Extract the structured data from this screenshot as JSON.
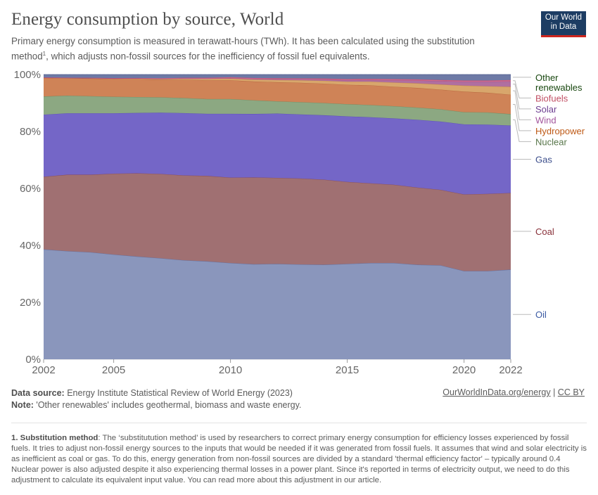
{
  "header": {
    "title": "Energy consumption by source, World",
    "subtitle_part1": "Primary energy consumption is measured in terawatt-hours (TWh). It has been calculated using the substitution method",
    "subtitle_sup": "1",
    "subtitle_part2": ", which adjusts non-fossil sources for the inefficiency of fossil fuel equivalents.",
    "logo_line1": "Our World",
    "logo_line2": "in Data"
  },
  "chart_data": {
    "type": "area",
    "stacked": true,
    "relative": true,
    "x": [
      2002,
      2003,
      2004,
      2005,
      2006,
      2007,
      2008,
      2009,
      2010,
      2011,
      2012,
      2013,
      2014,
      2015,
      2016,
      2017,
      2018,
      2019,
      2020,
      2021,
      2022
    ],
    "xticks": [
      "2002",
      "2005",
      "2010",
      "2015",
      "2020",
      "2022"
    ],
    "yticks": [
      "0%",
      "20%",
      "40%",
      "60%",
      "80%",
      "100%"
    ],
    "ylim": [
      0,
      100
    ],
    "grid": "horizontal dashed",
    "legend": "right, labels at series end",
    "series": [
      {
        "name": "Oil",
        "color": "#8a96bc",
        "line": "#5f6fa3",
        "label_color": "#3b5aa3",
        "values": [
          38.6,
          38.0,
          37.6,
          36.8,
          36.1,
          35.5,
          34.8,
          34.4,
          33.8,
          33.4,
          33.5,
          33.3,
          33.2,
          33.5,
          33.8,
          33.8,
          33.2,
          33.0,
          31.0,
          31.0,
          31.5
        ]
      },
      {
        "name": "Coal",
        "color": "#a07072",
        "line": "#8b4a4e",
        "label_color": "#883039",
        "values": [
          25.5,
          26.8,
          27.2,
          28.4,
          29.2,
          29.6,
          29.8,
          30.0,
          30.0,
          30.5,
          30.2,
          30.2,
          29.9,
          28.8,
          28.0,
          27.5,
          27.1,
          26.5,
          26.9,
          27.1,
          26.9
        ]
      },
      {
        "name": "Gas",
        "color": "#7466c7",
        "line": "#5b4cb7",
        "label_color": "#3c4e8b",
        "values": [
          21.8,
          21.6,
          21.6,
          21.2,
          21.2,
          21.5,
          21.9,
          21.8,
          22.4,
          22.3,
          22.6,
          22.5,
          22.6,
          23.0,
          23.2,
          23.3,
          23.8,
          24.0,
          24.6,
          24.3,
          23.7
        ]
      },
      {
        "name": "Nuclear",
        "color": "#8ca882",
        "line": "#6d8a62",
        "label_color": "#58764a",
        "values": [
          6.4,
          6.2,
          6.0,
          5.8,
          5.6,
          5.4,
          5.3,
          5.2,
          5.2,
          4.8,
          4.3,
          4.3,
          4.3,
          4.3,
          4.3,
          4.3,
          4.3,
          4.3,
          4.3,
          4.3,
          4.0
        ]
      },
      {
        "name": "Hydropower",
        "color": "#cf8357",
        "line": "#b5653c",
        "label_color": "#be5915",
        "values": [
          6.5,
          6.1,
          6.2,
          6.2,
          6.3,
          6.2,
          6.4,
          6.6,
          6.6,
          6.6,
          6.7,
          6.8,
          6.8,
          6.8,
          6.9,
          6.8,
          6.9,
          6.9,
          7.2,
          6.9,
          6.8
        ]
      },
      {
        "name": "Wind",
        "color": "#d8a66c",
        "line": "#c28a4a",
        "label_color": "#a2559c",
        "values": [
          0.1,
          0.1,
          0.15,
          0.2,
          0.25,
          0.3,
          0.4,
          0.5,
          0.6,
          0.7,
          0.8,
          0.9,
          1.0,
          1.1,
          1.3,
          1.5,
          1.6,
          1.8,
          2.1,
          2.3,
          2.8
        ]
      },
      {
        "name": "Solar",
        "color": "#b06fa0",
        "line": "#9a4f8a",
        "label_color": "#6d3e91",
        "values": [
          0.0,
          0.0,
          0.0,
          0.0,
          0.0,
          0.0,
          0.05,
          0.05,
          0.1,
          0.2,
          0.25,
          0.3,
          0.4,
          0.5,
          0.6,
          0.8,
          1.0,
          1.2,
          1.4,
          1.6,
          1.9
        ]
      },
      {
        "name": "Biofuels",
        "color": "#d36b8b",
        "line": "#c04a6c",
        "label_color": "#c15065",
        "values": [
          0.1,
          0.1,
          0.1,
          0.15,
          0.15,
          0.2,
          0.25,
          0.3,
          0.35,
          0.35,
          0.35,
          0.35,
          0.4,
          0.4,
          0.4,
          0.4,
          0.4,
          0.4,
          0.4,
          0.4,
          0.5
        ]
      },
      {
        "name": "Other renewables",
        "color": "#6e7aa6",
        "line": "#4c5a8d",
        "label_color": "#18470f",
        "values": [
          1.0,
          1.1,
          1.15,
          1.25,
          1.2,
          1.3,
          1.15,
          1.15,
          0.95,
          1.2,
          1.3,
          1.35,
          1.4,
          1.6,
          1.5,
          1.6,
          1.7,
          1.9,
          2.1,
          2.1,
          1.9
        ]
      }
    ]
  },
  "footer": {
    "source_label": "Data source:",
    "source_text": " Energy Institute Statistical Review of World Energy (2023)",
    "note_label": "Note:",
    "note_text": " 'Other renewables' includes geothermal, biomass and waste energy.",
    "credit_link": "OurWorldInData.org/energy",
    "credit_sep": " | ",
    "license": "CC BY",
    "footnote_label": "1. Substitution method",
    "footnote_text": ": The ‘substitutution method’ is used by researchers to correct primary energy consumption for efficiency losses experienced by fossil fuels. It tries to adjust non-fossil energy sources to the inputs that would be needed if it was generated from fossil fuels. It assumes that wind and solar electricity is as inefficient as coal or gas. To do this, energy generation from non-fossil sources are divided by a standard 'thermal efficiency factor' – typically around 0.4 Nuclear power is also adjusted despite it also experiencing thermal losses in a power plant. Since it's reported in terms of electricity output, we need to do this adjustment to calculate its equivalent input value. You can read more about this adjustment in our article."
  }
}
